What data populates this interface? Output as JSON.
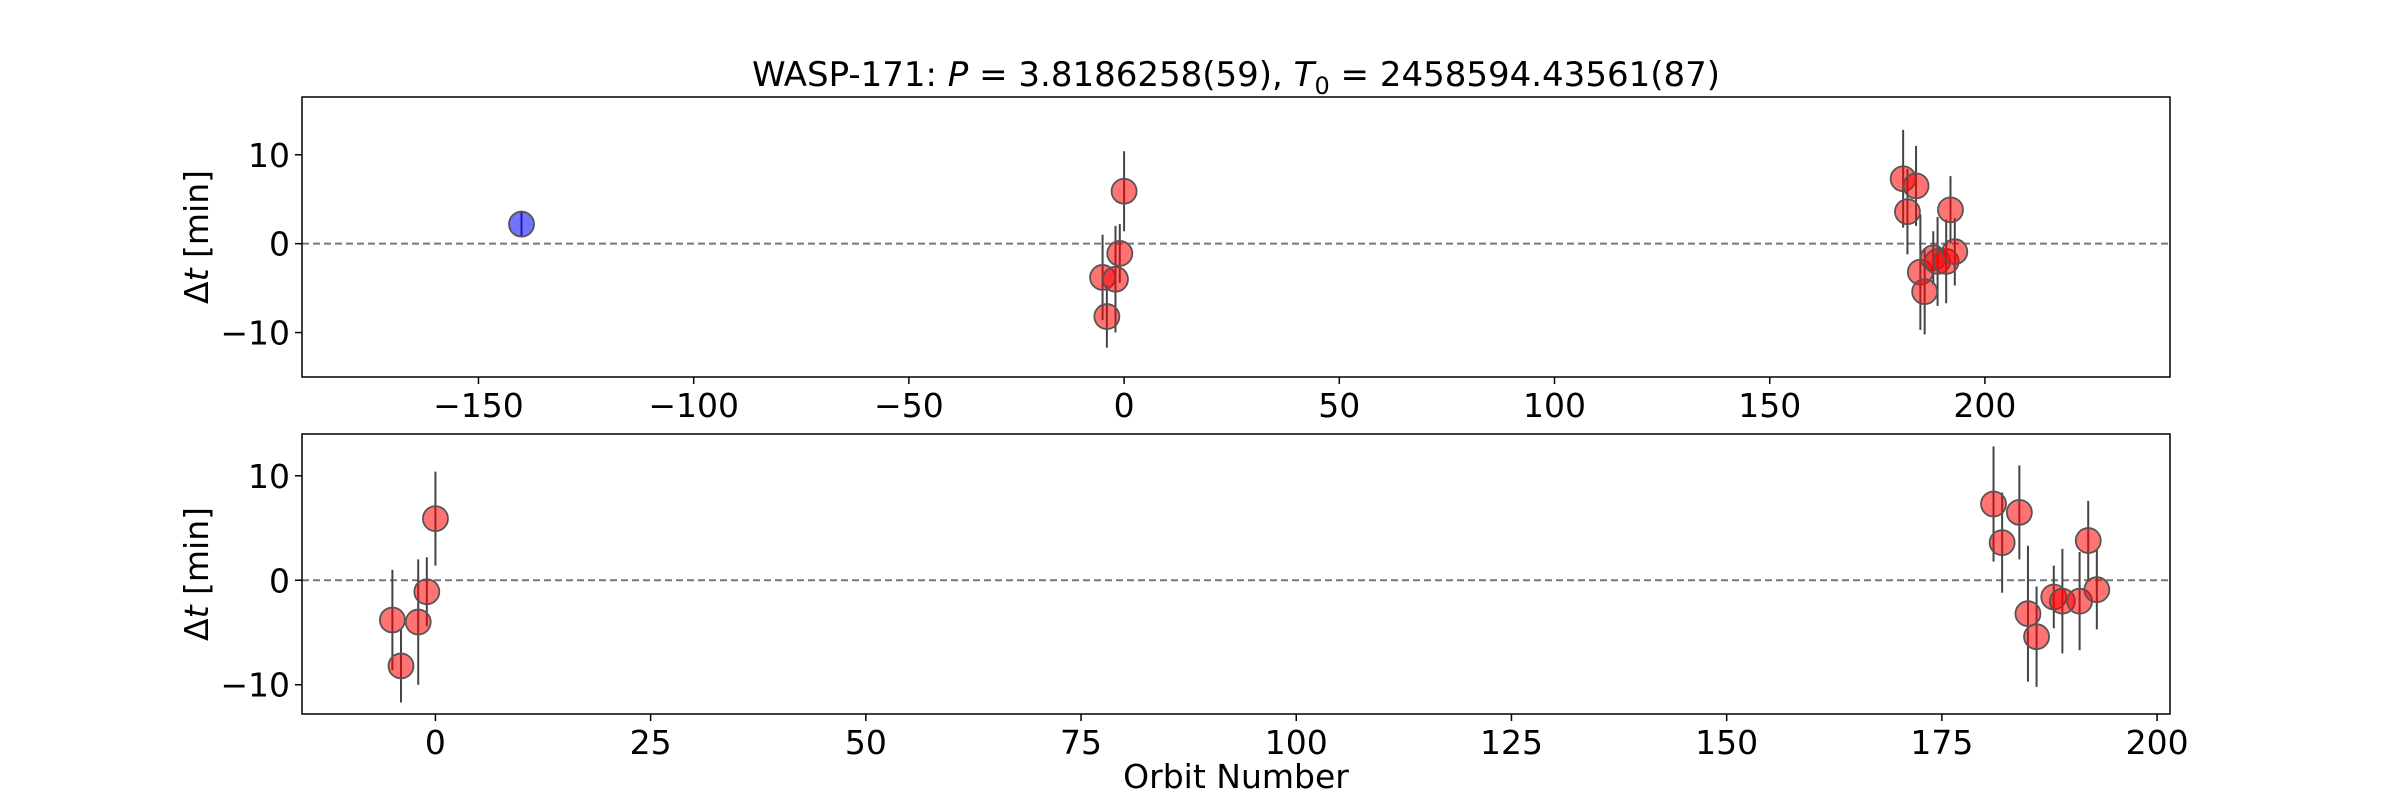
{
  "chart_data": [
    {
      "type": "scatter",
      "title": "WASP-171: P = 3.8186258(59), T₀ = 2458594.43561(87)",
      "title_parts": {
        "name": "WASP-171: ",
        "p_symbol": "P",
        "p_value": " = 3.8186258(59), ",
        "t_symbol": "T",
        "t_sub": "0",
        "t_value": " = 2458594.43561(87)"
      },
      "xlabel": "",
      "ylabel": "Δt [min]",
      "ylabel_parts": {
        "delta": "Δ",
        "t": "t",
        "unit": " [min]"
      },
      "xlim": [
        -191,
        243
      ],
      "ylim": [
        -15,
        16.5
      ],
      "xticks": [
        -150,
        -100,
        -50,
        0,
        50,
        100,
        150,
        200
      ],
      "xtick_labels": [
        "−150",
        "−100",
        "−50",
        "0",
        "50",
        "100",
        "150",
        "200"
      ],
      "yticks": [
        10,
        0,
        -10
      ],
      "ytick_labels": [
        "10",
        "0",
        "−10"
      ],
      "reference_line": 0,
      "series": [
        {
          "color": "#0000ff",
          "points": [
            {
              "x": -140,
              "y": 2.2,
              "err": 1.5
            }
          ]
        },
        {
          "color": "#ff0000",
          "points": [
            {
              "x": -5,
              "y": -3.8,
              "err": 4.8
            },
            {
              "x": -4,
              "y": -8.2,
              "err": 3.5
            },
            {
              "x": -2,
              "y": -4.0,
              "err": 6.0
            },
            {
              "x": -1,
              "y": -1.1,
              "err": 3.3
            },
            {
              "x": 0,
              "y": 5.9,
              "err": 4.5
            },
            {
              "x": 181,
              "y": 7.3,
              "err": 5.5
            },
            {
              "x": 182,
              "y": 3.6,
              "err": 4.8
            },
            {
              "x": 184,
              "y": 6.5,
              "err": 4.5
            },
            {
              "x": 185,
              "y": -3.2,
              "err": 6.5
            },
            {
              "x": 186,
              "y": -5.4,
              "err": 4.8
            },
            {
              "x": 188,
              "y": -1.6,
              "err": 3.0
            },
            {
              "x": 189,
              "y": -2.0,
              "err": 5.0
            },
            {
              "x": 191,
              "y": -2.0,
              "err": 4.7
            },
            {
              "x": 192,
              "y": 3.8,
              "err": 3.8
            },
            {
              "x": 193,
              "y": -0.9,
              "err": 3.8
            }
          ]
        }
      ]
    },
    {
      "type": "scatter",
      "title": "",
      "xlabel": "Orbit Number",
      "ylabel": "Δt [min]",
      "ylabel_parts": {
        "delta": "Δ",
        "t": "t",
        "unit": " [min]"
      },
      "xlim": [
        -15.5,
        201.5
      ],
      "ylim": [
        -12.8,
        14
      ],
      "xticks": [
        0,
        25,
        50,
        75,
        100,
        125,
        150,
        175,
        200
      ],
      "xtick_labels": [
        "0",
        "25",
        "50",
        "75",
        "100",
        "125",
        "150",
        "175",
        "200"
      ],
      "yticks": [
        10,
        0,
        -10
      ],
      "ytick_labels": [
        "10",
        "0",
        "−10"
      ],
      "reference_line": 0,
      "series": [
        {
          "color": "#ff0000",
          "points": [
            {
              "x": -5,
              "y": -3.8,
              "err": 4.8
            },
            {
              "x": -4,
              "y": -8.2,
              "err": 3.5
            },
            {
              "x": -2,
              "y": -4.0,
              "err": 6.0
            },
            {
              "x": -1,
              "y": -1.1,
              "err": 3.3
            },
            {
              "x": 0,
              "y": 5.9,
              "err": 4.5
            },
            {
              "x": 181,
              "y": 7.3,
              "err": 5.5
            },
            {
              "x": 182,
              "y": 3.6,
              "err": 4.8
            },
            {
              "x": 184,
              "y": 6.5,
              "err": 4.5
            },
            {
              "x": 185,
              "y": -3.2,
              "err": 6.5
            },
            {
              "x": 186,
              "y": -5.4,
              "err": 4.8
            },
            {
              "x": 188,
              "y": -1.6,
              "err": 3.0
            },
            {
              "x": 189,
              "y": -2.0,
              "err": 5.0
            },
            {
              "x": 191,
              "y": -2.0,
              "err": 4.7
            },
            {
              "x": 192,
              "y": 3.8,
              "err": 3.8
            },
            {
              "x": 193,
              "y": -0.9,
              "err": 3.8
            }
          ]
        }
      ]
    }
  ]
}
